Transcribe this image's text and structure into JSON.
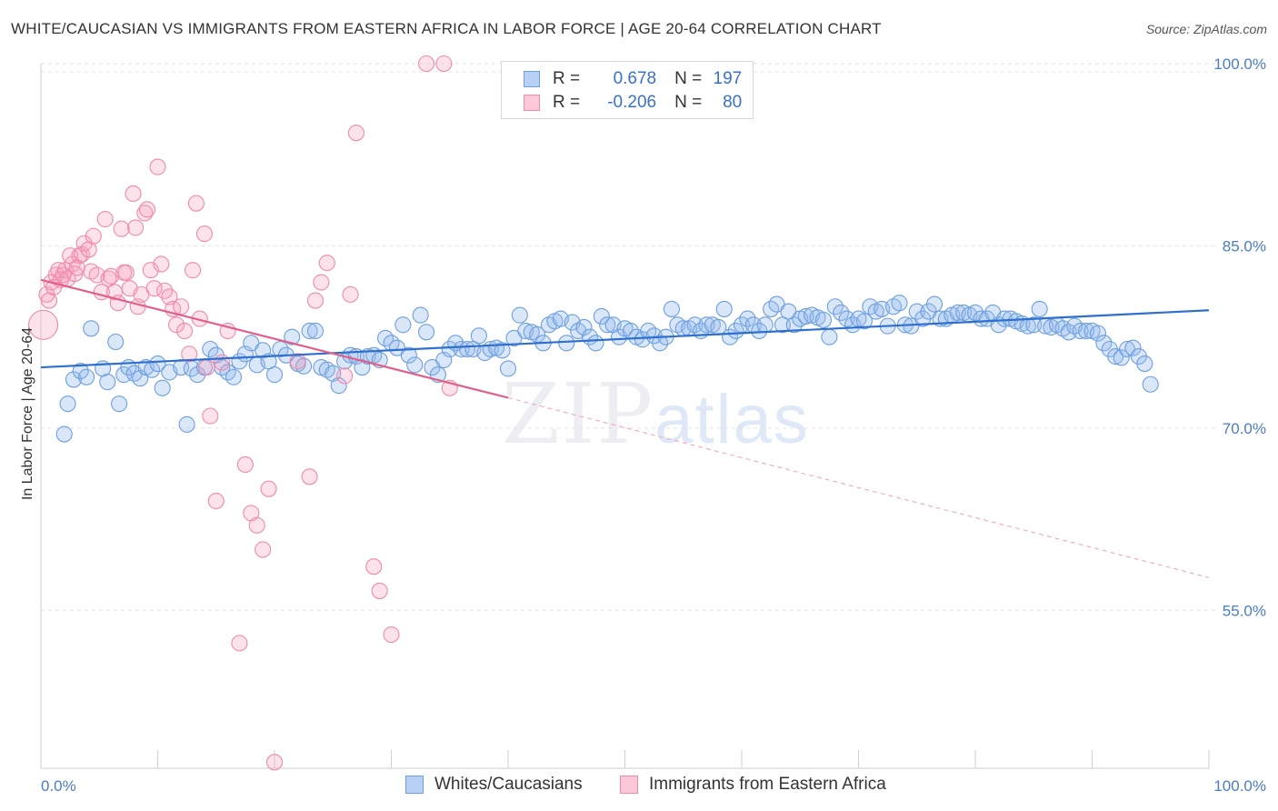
{
  "title": "WHITE/CAUCASIAN VS IMMIGRANTS FROM EASTERN AFRICA IN LABOR FORCE | AGE 20-64 CORRELATION CHART",
  "source": "Source: ZipAtlas.com",
  "watermark": {
    "zip": "ZIP",
    "atlas": "atlas"
  },
  "legend": {
    "series1": {
      "r_label": "R =",
      "r_value": "0.678",
      "n_label": "N =",
      "n_value": "197"
    },
    "series2": {
      "r_label": "R =",
      "r_value": "-0.206",
      "n_label": "N =",
      "n_value": "80"
    }
  },
  "colors": {
    "blue": "#6c9fe0",
    "blue_line": "#2f6fd0",
    "pink": "#f08aaa",
    "pink_line": "#e0608a",
    "tick": "#4a7cc7"
  },
  "chart_data": {
    "type": "scatter",
    "title": "WHITE/CAUCASIAN VS IMMIGRANTS FROM EASTERN AFRICA IN LABOR FORCE | AGE 20-64 CORRELATION CHART",
    "xlabel": "",
    "ylabel": "In Labor Force | Age 20-64",
    "xlim": [
      0,
      100
    ],
    "ylim": [
      42,
      100
    ],
    "x_tick_labels": [
      "0.0%",
      "100.0%"
    ],
    "y_ticks": [
      55,
      70,
      85,
      100
    ],
    "y_tick_labels": [
      "55.0%",
      "70.0%",
      "85.0%",
      "100.0%"
    ],
    "legend_position": "top-center",
    "series": [
      {
        "name": "Whites/Caucasians",
        "color": "#6c9fe0",
        "trend": {
          "x": [
            0,
            100
          ],
          "y": [
            75.0,
            79.7
          ]
        },
        "points": [
          [
            2,
            69.5
          ],
          [
            2.3,
            72
          ],
          [
            2.8,
            74
          ],
          [
            3.4,
            74.7
          ],
          [
            3.9,
            74.2
          ],
          [
            4.3,
            78.2
          ],
          [
            5.3,
            74.9
          ],
          [
            5.7,
            73.8
          ],
          [
            6.4,
            77.1
          ],
          [
            6.7,
            72
          ],
          [
            7.1,
            74.4
          ],
          [
            7.5,
            75
          ],
          [
            8,
            74.5
          ],
          [
            8.5,
            74.1
          ],
          [
            9,
            75
          ],
          [
            9.5,
            74.8
          ],
          [
            10,
            75.3
          ],
          [
            10.4,
            73.3
          ],
          [
            11,
            74.6
          ],
          [
            12,
            75
          ],
          [
            12.5,
            70.3
          ],
          [
            12.9,
            74.9
          ],
          [
            13.4,
            74.4
          ],
          [
            14,
            75
          ],
          [
            14.5,
            76.5
          ],
          [
            15,
            76
          ],
          [
            15.5,
            75
          ],
          [
            16,
            74.6
          ],
          [
            16.5,
            74.2
          ],
          [
            17,
            75.5
          ],
          [
            17.5,
            76.1
          ],
          [
            18,
            77
          ],
          [
            18.5,
            75.2
          ],
          [
            19,
            76.4
          ],
          [
            19.5,
            75.5
          ],
          [
            20,
            74.4
          ],
          [
            20.5,
            76.5
          ],
          [
            21,
            76
          ],
          [
            21.5,
            77.5
          ],
          [
            22,
            75.3
          ],
          [
            22.5,
            75.1
          ],
          [
            23,
            78
          ],
          [
            23.5,
            78
          ],
          [
            24,
            75
          ],
          [
            24.5,
            74.8
          ],
          [
            25,
            74.5
          ],
          [
            25.5,
            73.5
          ],
          [
            26,
            75.5
          ],
          [
            26.5,
            76
          ],
          [
            27,
            75.9
          ],
          [
            27.5,
            75
          ],
          [
            28,
            75.9
          ],
          [
            28.5,
            76
          ],
          [
            29,
            75.6
          ],
          [
            29.5,
            77.4
          ],
          [
            30,
            77
          ],
          [
            30.5,
            76.6
          ],
          [
            31,
            78.5
          ],
          [
            31.5,
            76
          ],
          [
            32,
            75.2
          ],
          [
            32.5,
            79.3
          ],
          [
            33,
            77.9
          ],
          [
            33.5,
            75
          ],
          [
            34,
            74.4
          ],
          [
            34.5,
            75.6
          ],
          [
            35,
            76.5
          ],
          [
            35.5,
            77
          ],
          [
            36,
            76.5
          ],
          [
            36.5,
            76.5
          ],
          [
            37,
            76.5
          ],
          [
            37.5,
            77.6
          ],
          [
            38,
            76.2
          ],
          [
            38.5,
            76.5
          ],
          [
            39,
            76.6
          ],
          [
            39.5,
            76.4
          ],
          [
            40,
            74.9
          ],
          [
            40.5,
            77.4
          ],
          [
            41,
            79.3
          ],
          [
            41.5,
            78
          ],
          [
            42,
            77.9
          ],
          [
            42.5,
            77.7
          ],
          [
            43,
            77
          ],
          [
            43.5,
            78.5
          ],
          [
            44,
            78.8
          ],
          [
            44.5,
            79
          ],
          [
            45,
            77
          ],
          [
            45.5,
            78.7
          ],
          [
            46,
            78
          ],
          [
            46.5,
            78.3
          ],
          [
            47,
            77.5
          ],
          [
            47.5,
            77
          ],
          [
            48,
            79.2
          ],
          [
            48.5,
            78.5
          ],
          [
            49,
            78.5
          ],
          [
            49.5,
            77.5
          ],
          [
            50,
            78.2
          ],
          [
            50.5,
            78
          ],
          [
            51,
            77.5
          ],
          [
            51.5,
            77.3
          ],
          [
            52,
            78
          ],
          [
            52.5,
            77.6
          ],
          [
            53,
            77
          ],
          [
            53.5,
            77.5
          ],
          [
            54,
            79.8
          ],
          [
            54.5,
            78.5
          ],
          [
            55,
            78.2
          ],
          [
            55.5,
            78.2
          ],
          [
            56,
            78.5
          ],
          [
            56.5,
            78
          ],
          [
            57,
            78.5
          ],
          [
            57.5,
            78.5
          ],
          [
            58,
            78.3
          ],
          [
            58.5,
            79.8
          ],
          [
            59,
            77.5
          ],
          [
            59.5,
            78
          ],
          [
            60,
            78.5
          ],
          [
            60.5,
            79
          ],
          [
            61,
            78.5
          ],
          [
            61.5,
            78
          ],
          [
            62,
            78.5
          ],
          [
            62.5,
            79.8
          ],
          [
            63,
            80.2
          ],
          [
            63.5,
            78.5
          ],
          [
            64,
            79.6
          ],
          [
            64.5,
            78.5
          ],
          [
            65,
            79
          ],
          [
            65.5,
            79.2
          ],
          [
            66,
            79.3
          ],
          [
            66.5,
            79.1
          ],
          [
            67,
            78.9
          ],
          [
            67.5,
            77.5
          ],
          [
            68,
            80
          ],
          [
            68.5,
            79.5
          ],
          [
            69,
            79
          ],
          [
            69.5,
            78.5
          ],
          [
            70,
            79
          ],
          [
            70.5,
            78.8
          ],
          [
            71,
            80
          ],
          [
            71.5,
            79.6
          ],
          [
            72,
            79.8
          ],
          [
            72.5,
            78.4
          ],
          [
            73,
            80
          ],
          [
            73.5,
            80.3
          ],
          [
            74,
            78.5
          ],
          [
            74.5,
            78.4
          ],
          [
            75,
            79.6
          ],
          [
            75.5,
            79
          ],
          [
            76,
            79.6
          ],
          [
            76.5,
            80.2
          ],
          [
            77,
            79
          ],
          [
            77.5,
            79
          ],
          [
            78,
            79.3
          ],
          [
            78.5,
            79.5
          ],
          [
            79,
            79.5
          ],
          [
            79.5,
            79.3
          ],
          [
            80,
            79.5
          ],
          [
            80.5,
            79
          ],
          [
            81,
            79
          ],
          [
            81.5,
            79.5
          ],
          [
            82,
            78.5
          ],
          [
            82.5,
            79
          ],
          [
            83,
            79
          ],
          [
            83.5,
            78.8
          ],
          [
            84,
            78.6
          ],
          [
            84.5,
            78.4
          ],
          [
            85,
            78.5
          ],
          [
            85.5,
            79.8
          ],
          [
            86,
            78.4
          ],
          [
            86.5,
            78.3
          ],
          [
            87,
            78.5
          ],
          [
            87.5,
            78.2
          ],
          [
            88,
            77.9
          ],
          [
            88.5,
            78.4
          ],
          [
            89,
            78
          ],
          [
            89.5,
            78
          ],
          [
            90,
            78
          ],
          [
            90.5,
            77.8
          ],
          [
            91,
            77
          ],
          [
            91.5,
            76.5
          ],
          [
            92,
            75.9
          ],
          [
            92.5,
            75.8
          ],
          [
            93,
            76.5
          ],
          [
            93.5,
            76.6
          ],
          [
            94,
            75.9
          ],
          [
            94.5,
            75.3
          ],
          [
            95,
            73.6
          ]
        ]
      },
      {
        "name": "Immigrants from Eastern Africa",
        "color": "#f08aaa",
        "trend": {
          "x": [
            0,
            40
          ],
          "y": [
            82.2,
            72.5
          ]
        },
        "trend_dashed": {
          "x": [
            40,
            100
          ],
          "y": [
            72.5,
            57.7
          ]
        },
        "points": [
          [
            0.2,
            78.5
          ],
          [
            0.5,
            81
          ],
          [
            0.7,
            80.5
          ],
          [
            0.9,
            82
          ],
          [
            1.1,
            81.6
          ],
          [
            1.3,
            82.6
          ],
          [
            1.5,
            83
          ],
          [
            1.7,
            82.2
          ],
          [
            1.9,
            82.6
          ],
          [
            2.1,
            83
          ],
          [
            2.3,
            82.3
          ],
          [
            2.5,
            84.2
          ],
          [
            2.7,
            83.5
          ],
          [
            2.9,
            82.7
          ],
          [
            3.1,
            83.2
          ],
          [
            3.3,
            84.2
          ],
          [
            3.5,
            84.3
          ],
          [
            3.7,
            85.2
          ],
          [
            4.1,
            84.7
          ],
          [
            4.3,
            82.9
          ],
          [
            4.5,
            85.8
          ],
          [
            4.8,
            82.6
          ],
          [
            5.2,
            81.2
          ],
          [
            5.5,
            87.2
          ],
          [
            5.8,
            82.3
          ],
          [
            6.0,
            82.5
          ],
          [
            6.3,
            81.2
          ],
          [
            6.6,
            80.3
          ],
          [
            6.9,
            86.4
          ],
          [
            7.1,
            82.8
          ],
          [
            7.3,
            82.8
          ],
          [
            7.6,
            81.5
          ],
          [
            7.9,
            89.3
          ],
          [
            8.1,
            86.5
          ],
          [
            8.3,
            80
          ],
          [
            8.6,
            81
          ],
          [
            8.9,
            87.7
          ],
          [
            9.1,
            88
          ],
          [
            9.4,
            83
          ],
          [
            9.7,
            81.5
          ],
          [
            10,
            91.5
          ],
          [
            10.3,
            83.5
          ],
          [
            10.6,
            81.3
          ],
          [
            11,
            80.8
          ],
          [
            11.3,
            79.8
          ],
          [
            11.6,
            78.5
          ],
          [
            12,
            80
          ],
          [
            12.3,
            78
          ],
          [
            12.7,
            76.1
          ],
          [
            13,
            83
          ],
          [
            13.3,
            88.5
          ],
          [
            13.6,
            79
          ],
          [
            14,
            86
          ],
          [
            14.2,
            75
          ],
          [
            14.5,
            71
          ],
          [
            15.5,
            75.4
          ],
          [
            16,
            78
          ],
          [
            17,
            52.3
          ],
          [
            17.5,
            67
          ],
          [
            18,
            63
          ],
          [
            18.5,
            62
          ],
          [
            19,
            60
          ],
          [
            19.5,
            65
          ],
          [
            22,
            75.5
          ],
          [
            23,
            66
          ],
          [
            23.5,
            80.5
          ],
          [
            24,
            82
          ],
          [
            24.5,
            83.6
          ],
          [
            26,
            74.3
          ],
          [
            27,
            94.3
          ],
          [
            28.5,
            58.6
          ],
          [
            29,
            56.6
          ],
          [
            30,
            53
          ],
          [
            33,
            100
          ],
          [
            34.5,
            100
          ],
          [
            35,
            73.3
          ],
          [
            20,
            42.5
          ],
          [
            26.5,
            81
          ],
          [
            15,
            64
          ]
        ]
      }
    ]
  }
}
